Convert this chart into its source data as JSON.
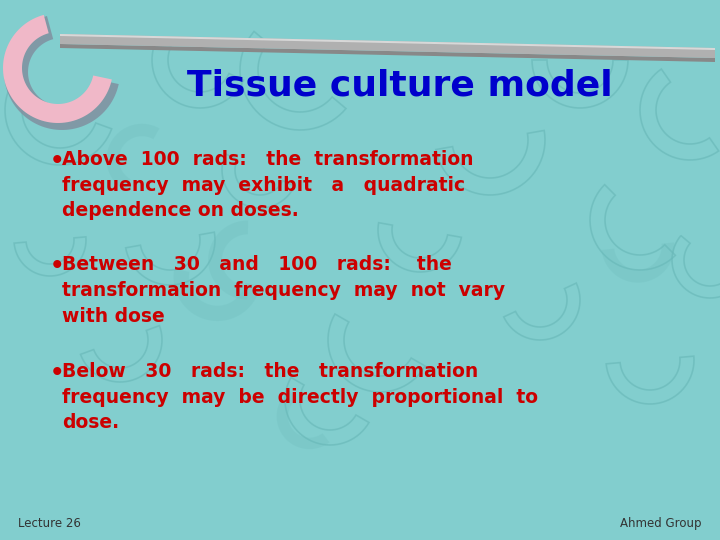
{
  "title": "Tissue culture model",
  "title_color": "#0000CC",
  "title_fontsize": 26,
  "bg_color": "#82CECE",
  "bullet_color": "#CC0000",
  "bullet_fontsize": 13.5,
  "footer_left": "Lecture 26",
  "footer_right": "Ahmed Group",
  "footer_fontsize": 8.5,
  "bullets": [
    "Above  100  rads:   the  transformation\nfrequency  may  exhibit   a   quadratic\ndependence on doses.",
    "Between   30   and   100   rads:    the\ntransformation  frequency  may  not  vary\nwith dose",
    "Below   30   rads:   the   transformation\nfrequency  may  be  directly  proportional  to\ndose."
  ],
  "boomerang_color": "#F0B8C8",
  "boomerang_shadow": "#8090A0",
  "rod_main": "#B0B0B0",
  "rod_dark": "#888888",
  "rod_light": "#D8D8D8"
}
